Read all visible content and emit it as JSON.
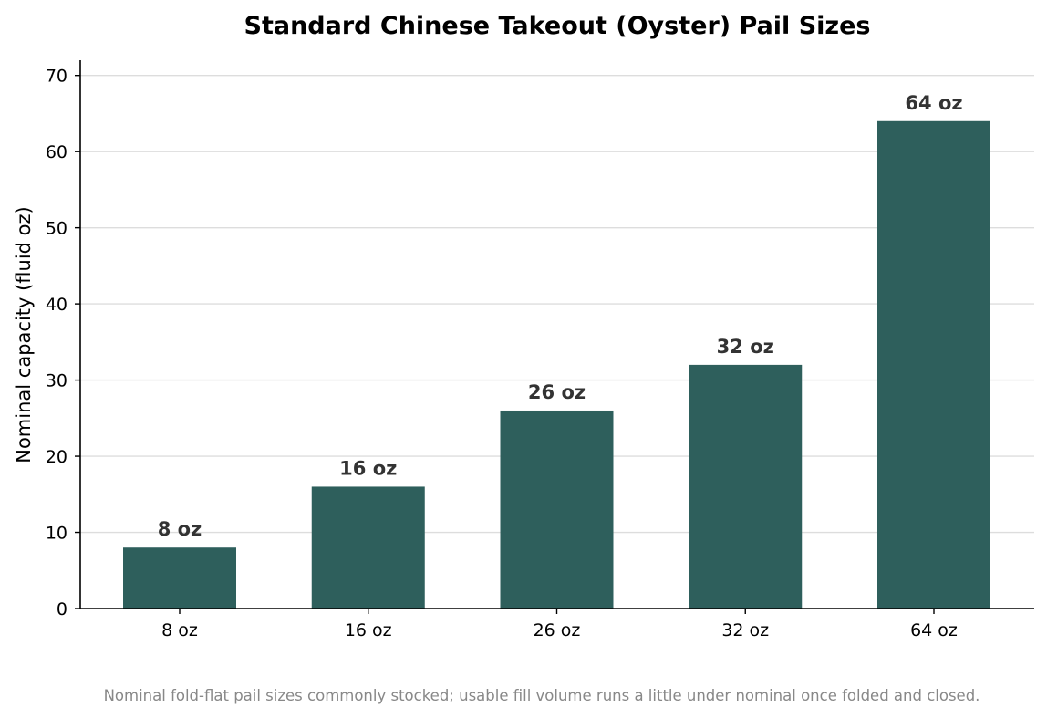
{
  "chart_data": {
    "type": "bar",
    "title": "Standard Chinese Takeout (Oyster) Pail Sizes",
    "xlabel": "",
    "ylabel": "Nominal capacity (fluid oz)",
    "categories": [
      "8 oz",
      "16 oz",
      "26 oz",
      "32 oz",
      "64 oz"
    ],
    "values": [
      8,
      16,
      26,
      32,
      64
    ],
    "data_labels": [
      "8 oz",
      "16 oz",
      "26 oz",
      "32 oz",
      "64 oz"
    ],
    "y_ticks": [
      0,
      10,
      20,
      30,
      40,
      50,
      60,
      70
    ],
    "ylim": [
      0,
      72
    ],
    "grid": "horizontal",
    "bar_color": "#2e5f5c",
    "footnote": "Nominal fold-flat pail sizes commonly stocked; usable fill volume runs a little under nominal once folded and closed."
  }
}
